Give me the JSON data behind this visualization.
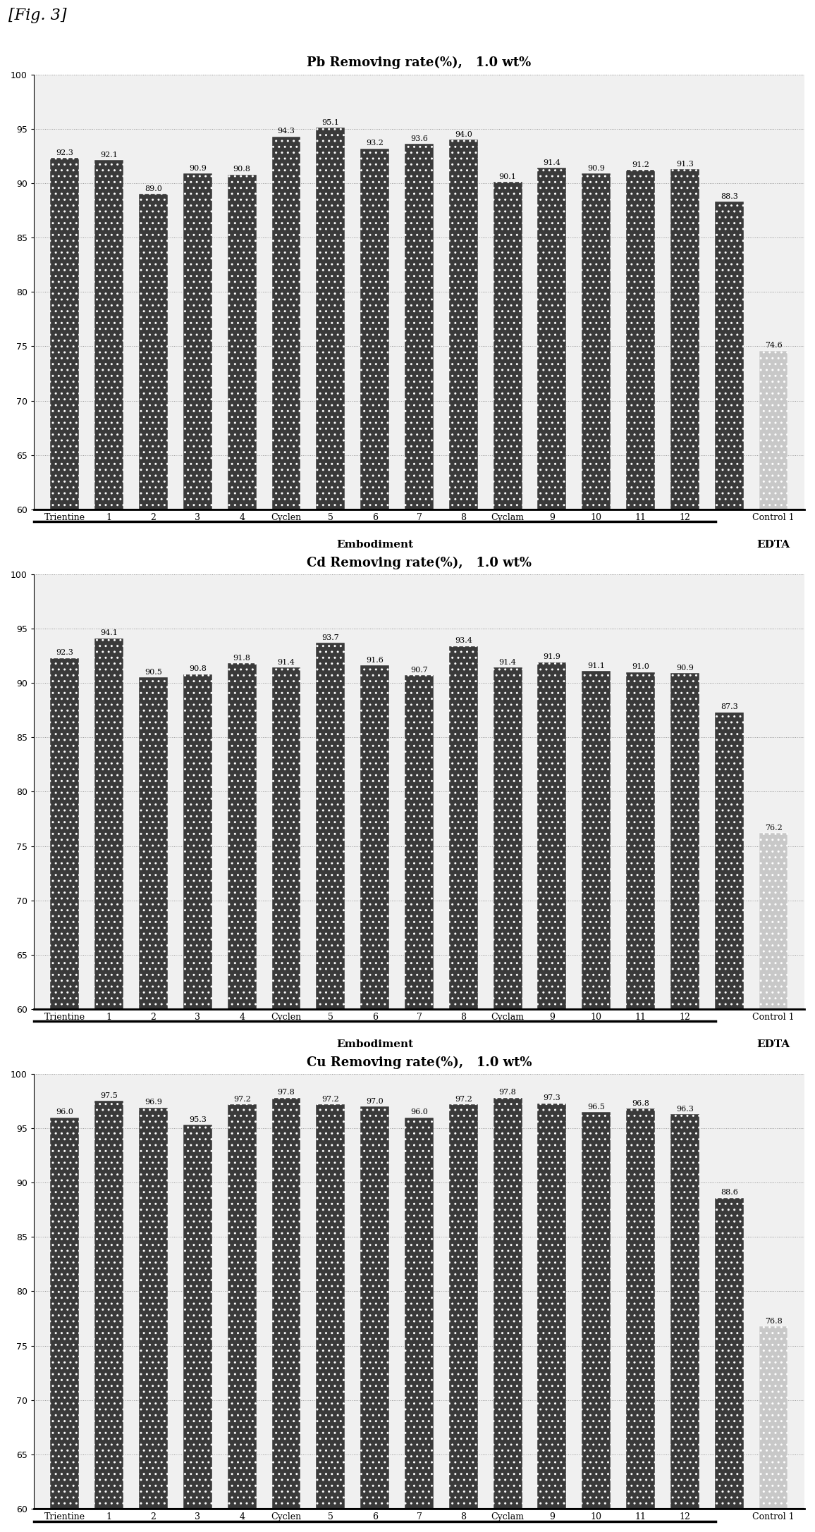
{
  "charts": [
    {
      "title": "Pb Removing rate(%),   1.0 wt%",
      "ylim": [
        60,
        100
      ],
      "yticks": [
        60,
        65,
        70,
        75,
        80,
        85,
        90,
        95,
        100
      ],
      "values": [
        92.3,
        92.1,
        89.0,
        90.9,
        90.8,
        94.3,
        95.1,
        93.2,
        93.6,
        94.0,
        90.1,
        91.4,
        90.9,
        91.2,
        91.3,
        88.3,
        74.6
      ],
      "dark_bars": [
        0,
        1,
        2,
        3,
        4,
        5,
        6,
        7,
        8,
        9,
        10,
        11,
        12,
        13,
        14,
        15
      ],
      "light_bars": [
        16
      ]
    },
    {
      "title": "Cd Removing rate(%),   1.0 wt%",
      "ylim": [
        60,
        100
      ],
      "yticks": [
        60,
        65,
        70,
        75,
        80,
        85,
        90,
        95,
        100
      ],
      "values": [
        92.3,
        94.1,
        90.5,
        90.8,
        91.8,
        91.4,
        93.7,
        91.6,
        90.7,
        93.4,
        91.4,
        91.9,
        91.1,
        91.0,
        90.9,
        87.3,
        76.2
      ],
      "dark_bars": [
        0,
        1,
        2,
        3,
        4,
        5,
        6,
        7,
        8,
        9,
        10,
        11,
        12,
        13,
        14,
        15
      ],
      "light_bars": [
        16
      ]
    },
    {
      "title": "Cu Removing rate(%),   1.0 wt%",
      "ylim": [
        60,
        100
      ],
      "yticks": [
        60,
        65,
        70,
        75,
        80,
        85,
        90,
        95,
        100
      ],
      "values": [
        96.0,
        97.5,
        96.9,
        95.3,
        97.2,
        97.8,
        97.2,
        97.0,
        96.0,
        97.2,
        97.8,
        97.3,
        96.5,
        96.8,
        96.3,
        88.6,
        76.8
      ],
      "dark_bars": [
        0,
        1,
        2,
        3,
        4,
        5,
        6,
        7,
        8,
        9,
        10,
        11,
        12,
        13,
        14,
        15
      ],
      "light_bars": [
        16
      ]
    }
  ],
  "x_labels": [
    "Trientine",
    "1",
    "2",
    "3",
    "4",
    "Cyclen",
    "5",
    "6",
    "7",
    "8",
    "Cyclam",
    "9",
    "10",
    "11",
    "12",
    "",
    "Control 1"
  ],
  "xlabel_embodiment": "Embodiment",
  "xlabel_edta": "EDTA",
  "fig_label": "[Fig. 3]",
  "background_color": "#f0f0f0",
  "dark_bar_color": "#3a3a3a",
  "light_bar_color": "#c8c8c8",
  "bar_width": 0.65,
  "value_fontsize": 8.0,
  "title_fontsize": 13,
  "tick_fontsize": 9,
  "xlabel_fontsize": 11
}
